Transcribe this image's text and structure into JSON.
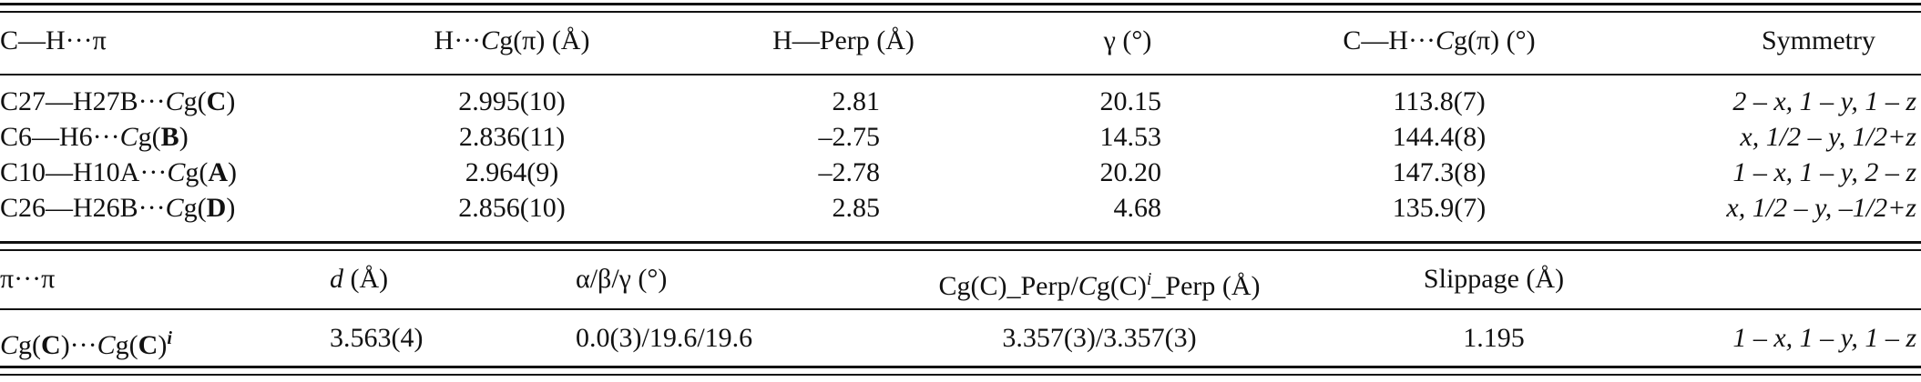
{
  "table1": {
    "headers": {
      "contact": "C—H···π",
      "hcg_pre": "H···",
      "hcg_c": "C",
      "hcg_post": "g(π) (Å)",
      "hperp": "H—Perp (Å)",
      "gamma": "γ (°)",
      "angle_pre": "C—H···",
      "angle_c": "C",
      "angle_post": "g(π) (°)",
      "symmetry": "Symmetry"
    },
    "rows": [
      {
        "pre": "C27—H27B···",
        "cg_c": "C",
        "cg_g": "g(",
        "ring": "C",
        "close": ")",
        "hcg": "2.995(10)",
        "hperp": "2.81",
        "gamma": "20.15",
        "angle": "113.8(7)",
        "symmetry": "2 – x, 1 – y, 1 – z"
      },
      {
        "pre": "C6—H6···",
        "cg_c": "C",
        "cg_g": "g(",
        "ring": "B",
        "close": ")",
        "hcg": "2.836(11)",
        "hperp": "–2.75",
        "gamma": "14.53",
        "angle": "144.4(8)",
        "symmetry": "x, 1/2 – y, 1/2+z"
      },
      {
        "pre": "C10—H10A···",
        "cg_c": "C",
        "cg_g": "g(",
        "ring": "A",
        "close": ")",
        "hcg": "2.964(9)",
        "hperp": "–2.78",
        "gamma": "20.20",
        "angle": "147.3(8)",
        "symmetry": "1 – x, 1 – y, 2 – z"
      },
      {
        "pre": "C26—H26B···",
        "cg_c": "C",
        "cg_g": "g(",
        "ring": "D",
        "close": ")",
        "hcg": "2.856(10)",
        "hperp": "2.85",
        "gamma": "4.68",
        "angle": "135.9(7)",
        "symmetry": "x, 1/2 – y, –1/2+z"
      }
    ]
  },
  "table2": {
    "headers": {
      "contact": "π···π",
      "d_var": "d",
      "d_unit": " (Å)",
      "angles": "α/β/γ (°)",
      "perp_a": "Cg(C)_Perp/",
      "perp_b": "C",
      "perp_c": "g(C)",
      "perp_sup": "i",
      "perp_d": "_Perp (Å)",
      "slippage": "Slippage (Å)"
    },
    "row": {
      "contact_a": "C",
      "contact_b": "g(",
      "contact_ring": "C",
      "contact_c": ")···",
      "contact_d": "C",
      "contact_e": "g(",
      "contact_ring2": "C",
      "contact_f": ")",
      "contact_sup": "i",
      "d": "3.563(4)",
      "angles": "0.0(3)/19.6/19.6",
      "perp": "3.357(3)/3.357(3)",
      "slippage": "1.195",
      "symmetry": "1 – x, 1 – y, 1 – z"
    }
  }
}
